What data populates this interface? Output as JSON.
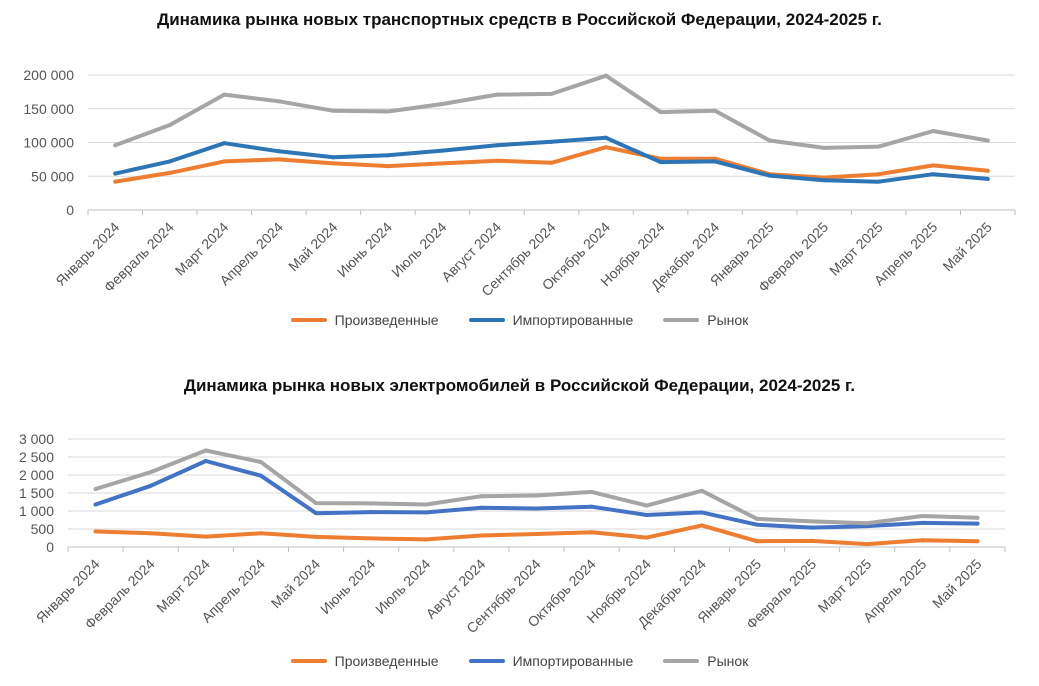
{
  "chart_data": [
    {
      "type": "line",
      "title": "Динамика рынка новых транспортных средств в Российской Федерации, 2024-2025 г.",
      "categories": [
        "Январь 2024",
        "Февраль 2024",
        "Март 2024",
        "Апрель 2024",
        "Май 2024",
        "Июнь 2024",
        "Июль 2024",
        "Август 2024",
        "Сентябрь 2024",
        "Октябрь 2024",
        "Ноябрь 2024",
        "Декабрь 2024",
        "Январь 2025",
        "Февраль 2025",
        "Март 2025",
        "Апрель 2025",
        "Май 2025"
      ],
      "ylim": [
        0,
        200000
      ],
      "yticks": [
        0,
        50000,
        100000,
        150000,
        200000
      ],
      "ytick_labels": [
        "0",
        "50 000",
        "100 000",
        "150 000",
        "200 000"
      ],
      "grid": true,
      "legend_position": "bottom",
      "series": [
        {
          "name": "Произведенные",
          "color": "#ED7D31",
          "values": [
            42000,
            55000,
            72000,
            75000,
            69000,
            65000,
            69000,
            73000,
            70000,
            93000,
            76000,
            76000,
            53000,
            48000,
            53000,
            66000,
            58000
          ]
        },
        {
          "name": "Импортированные",
          "color": "#2E75B6",
          "values": [
            54000,
            72000,
            99000,
            87000,
            78000,
            81000,
            88000,
            96000,
            101000,
            107000,
            71000,
            72000,
            51000,
            44000,
            42000,
            53000,
            46000
          ]
        },
        {
          "name": "Рынок",
          "color": "#A5A5A5",
          "values": [
            96000,
            126000,
            171000,
            161000,
            147000,
            146000,
            157000,
            171000,
            172000,
            199000,
            145000,
            147000,
            103000,
            92000,
            94000,
            117000,
            103000
          ]
        }
      ]
    },
    {
      "type": "line",
      "title": "Динамика рынка новых электромобилей в Российской Федерации, 2024-2025 г.",
      "categories": [
        "Январь 2024",
        "Февраль 2024",
        "Март 2024",
        "Апрель 2024",
        "Май 2024",
        "Июнь 2024",
        "Июль 2024",
        "Август 2024",
        "Сентябрь 2024",
        "Октябрь 2024",
        "Ноябрь 2024",
        "Декабрь 2024",
        "Январь 2025",
        "Февраль 2025",
        "Март 2025",
        "Апрель 2025",
        "Май 2025"
      ],
      "ylim": [
        0,
        3000
      ],
      "yticks": [
        0,
        500,
        1000,
        1500,
        2000,
        2500,
        3000
      ],
      "ytick_labels": [
        "0",
        "500",
        "1 000",
        "1 500",
        "2 000",
        "2 500",
        "3 000"
      ],
      "grid": true,
      "legend_position": "bottom",
      "series": [
        {
          "name": "Произведенные",
          "color": "#ED7D31",
          "values": [
            430,
            380,
            290,
            380,
            280,
            240,
            210,
            320,
            360,
            410,
            260,
            600,
            160,
            170,
            80,
            190,
            160
          ]
        },
        {
          "name": "Импортированные",
          "color": "#4472C4",
          "values": [
            1180,
            1700,
            2390,
            1980,
            940,
            970,
            960,
            1090,
            1070,
            1120,
            890,
            960,
            620,
            540,
            580,
            670,
            650
          ]
        },
        {
          "name": "Рынок",
          "color": "#A5A5A5",
          "values": [
            1610,
            2080,
            2680,
            2360,
            1220,
            1210,
            1180,
            1410,
            1430,
            1530,
            1150,
            1560,
            780,
            710,
            660,
            860,
            810
          ]
        }
      ]
    }
  ]
}
